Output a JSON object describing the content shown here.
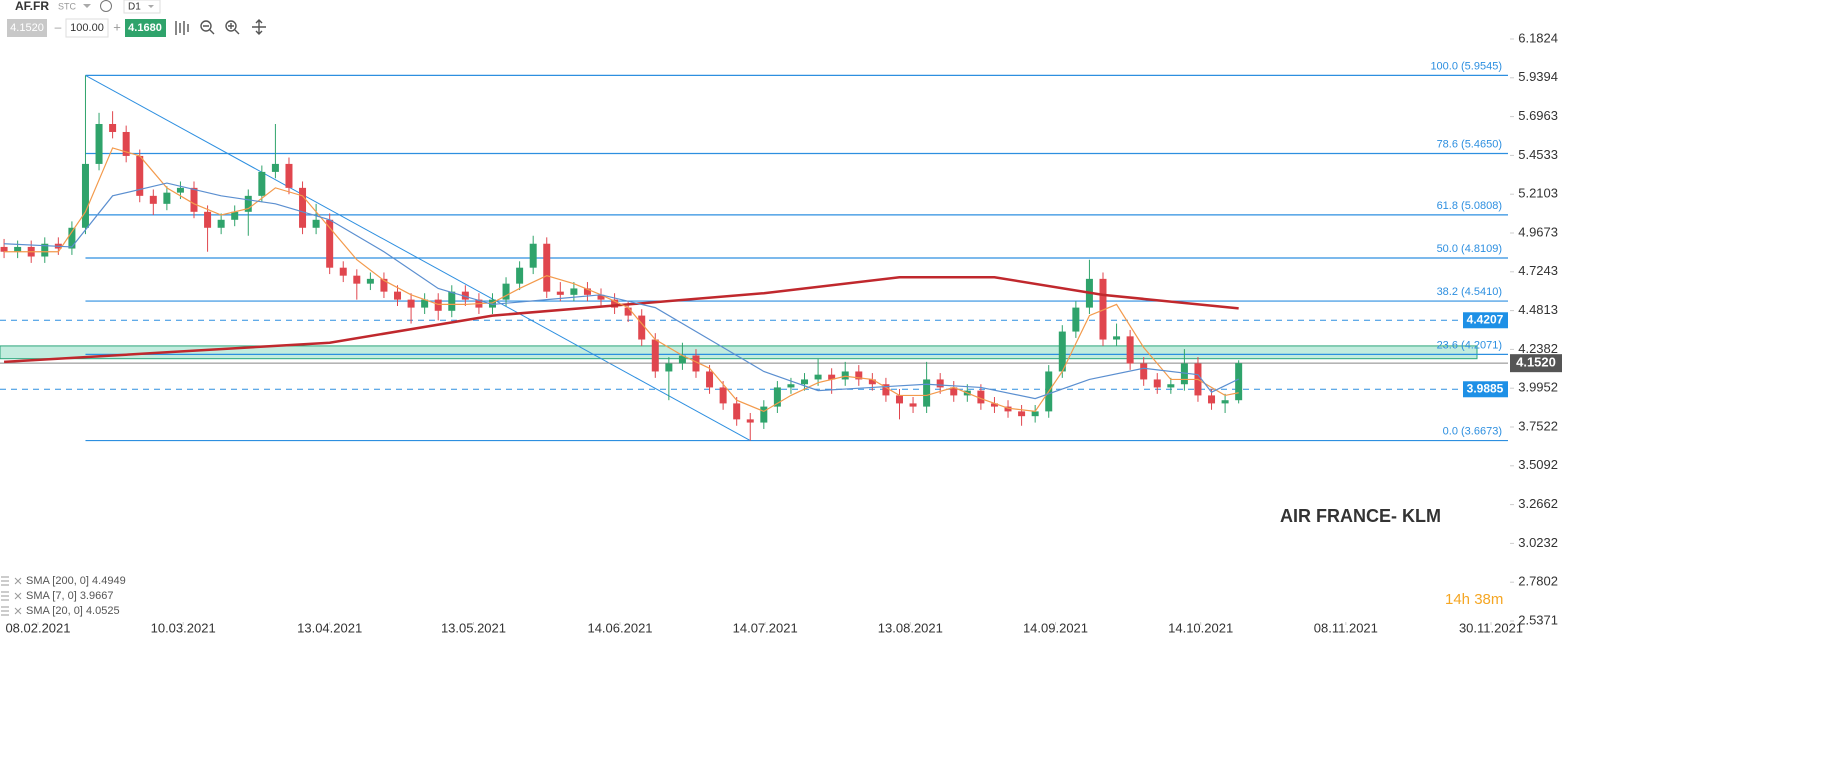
{
  "toolbar": {
    "symbol": "AF.FR",
    "market": "STC",
    "timeframe": "D1",
    "bid": "4.1520",
    "volume": "100.00",
    "ask": "4.1680"
  },
  "chart_data": {
    "type": "candlestick",
    "annotation": "AIR FRANCE- KLM",
    "timer": "14h 38m",
    "xlim": [
      -0.3,
      111
    ],
    "xticks": [
      {
        "value": 2.5,
        "label": "08.02.2021"
      },
      {
        "value": 13.2,
        "label": "10.03.2021"
      },
      {
        "value": 24,
        "label": "13.04.2021"
      },
      {
        "value": 34.6,
        "label": "13.05.2021"
      },
      {
        "value": 45.4,
        "label": "14.06.2021"
      },
      {
        "value": 56.1,
        "label": "14.07.2021"
      },
      {
        "value": 66.8,
        "label": "13.08.2021"
      },
      {
        "value": 77.5,
        "label": "14.09.2021"
      },
      {
        "value": 88.2,
        "label": "14.10.2021"
      },
      {
        "value": 98.9,
        "label": "08.11.2021"
      },
      {
        "value": 109.6,
        "label": "30.11.2021"
      }
    ],
    "ylim": [
      2.5371,
      6.364
    ],
    "yticks": [
      6.1824,
      5.9394,
      5.6963,
      5.4533,
      5.2103,
      4.9673,
      4.7243,
      4.4813,
      4.2382,
      3.9952,
      3.7522,
      3.5092,
      3.2662,
      3.0232,
      2.7802,
      2.5371
    ],
    "up_color": "#2fa36b",
    "down_color": "#e0464e",
    "x": [
      0,
      1,
      2,
      3,
      4,
      5,
      6,
      7,
      8,
      9,
      10,
      11,
      12,
      13,
      14,
      15,
      16,
      17,
      18,
      19,
      20,
      21,
      22,
      23,
      24,
      25,
      26,
      27,
      28,
      29,
      30,
      31,
      32,
      33,
      34,
      35,
      36,
      37,
      38,
      39,
      40,
      41,
      42,
      43,
      44,
      45,
      46,
      47,
      48,
      49,
      50,
      51,
      52,
      53,
      54,
      55,
      56,
      57,
      58,
      59,
      60,
      61,
      62,
      63,
      64,
      65,
      66,
      67,
      68,
      69,
      70,
      71,
      72,
      73,
      74,
      75,
      76,
      77,
      78,
      79,
      80,
      81,
      82,
      83,
      84,
      85,
      86,
      87,
      88,
      89,
      90,
      91
    ],
    "open": [
      4.88,
      4.85,
      4.88,
      4.82,
      4.9,
      4.87,
      5.0,
      5.4,
      5.65,
      5.6,
      5.45,
      5.2,
      5.15,
      5.22,
      5.25,
      5.1,
      5.0,
      5.05,
      5.1,
      5.2,
      5.35,
      5.4,
      5.25,
      5.0,
      5.05,
      4.75,
      4.7,
      4.65,
      4.68,
      4.6,
      4.55,
      4.5,
      4.55,
      4.48,
      4.6,
      4.55,
      4.5,
      4.55,
      4.65,
      4.75,
      4.9,
      4.6,
      4.58,
      4.62,
      4.58,
      4.55,
      4.5,
      4.45,
      4.3,
      4.1,
      4.15,
      4.2,
      4.1,
      4.0,
      3.9,
      3.8,
      3.78,
      3.88,
      4.0,
      4.02,
      4.05,
      4.08,
      4.05,
      4.1,
      4.05,
      4.02,
      3.95,
      3.9,
      3.88,
      4.05,
      4.0,
      3.95,
      3.98,
      3.9,
      3.88,
      3.85,
      3.82,
      3.85,
      4.1,
      4.35,
      4.5,
      4.68,
      4.3,
      4.32,
      4.15,
      4.05,
      4.0,
      4.02,
      4.15,
      3.95,
      3.9,
      3.92
    ],
    "high": [
      4.93,
      4.92,
      4.92,
      4.94,
      4.94,
      5.04,
      5.9545,
      5.72,
      5.73,
      5.64,
      5.49,
      5.24,
      5.26,
      5.29,
      5.29,
      5.14,
      5.09,
      5.14,
      5.24,
      5.39,
      5.65,
      5.44,
      5.29,
      5.15,
      5.09,
      4.79,
      4.74,
      4.72,
      4.72,
      4.64,
      4.59,
      4.59,
      4.59,
      4.64,
      4.64,
      4.59,
      4.59,
      4.69,
      4.79,
      4.95,
      4.94,
      4.66,
      4.66,
      4.66,
      4.62,
      4.59,
      4.54,
      4.49,
      4.34,
      4.19,
      4.28,
      4.24,
      4.14,
      4.04,
      3.94,
      3.84,
      3.92,
      4.04,
      4.06,
      4.09,
      4.18,
      4.12,
      4.16,
      4.14,
      4.09,
      4.06,
      3.99,
      3.94,
      4.16,
      4.09,
      4.04,
      4.02,
      4.02,
      3.94,
      3.92,
      3.89,
      3.89,
      4.14,
      4.39,
      4.54,
      4.8,
      4.72,
      4.4,
      4.36,
      4.19,
      4.09,
      4.06,
      4.24,
      4.19,
      3.99,
      3.96,
      4.17
    ],
    "low": [
      4.81,
      4.81,
      4.78,
      4.78,
      4.83,
      4.83,
      4.96,
      5.36,
      5.56,
      5.41,
      5.16,
      5.08,
      5.11,
      5.18,
      5.06,
      4.85,
      4.96,
      5.01,
      4.95,
      5.16,
      5.31,
      5.21,
      4.96,
      4.96,
      4.71,
      4.66,
      4.55,
      4.61,
      4.56,
      4.51,
      4.4,
      4.46,
      4.42,
      4.44,
      4.51,
      4.46,
      4.46,
      4.51,
      4.61,
      4.71,
      4.56,
      4.54,
      4.54,
      4.54,
      4.51,
      4.46,
      4.41,
      4.26,
      4.06,
      3.92,
      4.11,
      4.06,
      3.96,
      3.86,
      3.76,
      3.6673,
      3.74,
      3.84,
      3.96,
      3.98,
      4.01,
      3.96,
      4.01,
      4.01,
      3.98,
      3.91,
      3.8,
      3.84,
      3.84,
      3.96,
      3.91,
      3.91,
      3.86,
      3.84,
      3.81,
      3.76,
      3.78,
      3.81,
      4.06,
      4.31,
      4.46,
      4.26,
      4.26,
      4.11,
      4.01,
      3.96,
      3.96,
      3.98,
      3.91,
      3.86,
      3.84,
      3.9
    ],
    "close": [
      4.85,
      4.88,
      4.82,
      4.9,
      4.87,
      5.0,
      5.4,
      5.65,
      5.6,
      5.45,
      5.2,
      5.15,
      5.22,
      5.25,
      5.1,
      5.0,
      5.05,
      5.1,
      5.2,
      5.35,
      5.4,
      5.25,
      5.0,
      5.05,
      4.75,
      4.7,
      4.65,
      4.68,
      4.6,
      4.55,
      4.5,
      4.55,
      4.48,
      4.6,
      4.55,
      4.5,
      4.55,
      4.65,
      4.75,
      4.9,
      4.6,
      4.58,
      4.62,
      4.58,
      4.55,
      4.5,
      4.45,
      4.3,
      4.1,
      4.15,
      4.2,
      4.1,
      4.0,
      3.9,
      3.8,
      3.78,
      3.88,
      4.0,
      4.02,
      4.05,
      4.08,
      4.05,
      4.1,
      4.05,
      4.02,
      3.95,
      3.9,
      3.88,
      4.05,
      4.0,
      3.95,
      3.98,
      3.9,
      3.88,
      3.85,
      3.82,
      3.85,
      4.1,
      4.35,
      4.5,
      4.68,
      4.3,
      4.32,
      4.15,
      4.05,
      4.0,
      4.02,
      4.15,
      3.95,
      3.9,
      3.92,
      4.152
    ],
    "series": [
      {
        "name": "SMA [200, 0]",
        "legend_value": 4.4949,
        "color": "#c0282d",
        "width": 2.5,
        "x": [
          0,
          12,
          24,
          36,
          46,
          56,
          66,
          73,
          81,
          91
        ],
        "values": [
          4.16,
          4.22,
          4.28,
          4.45,
          4.52,
          4.59,
          4.69,
          4.69,
          4.58,
          4.4949
        ]
      },
      {
        "name": "SMA [7, 0]",
        "legend_value": 3.9667,
        "color": "#f39a4c",
        "width": 1.2,
        "x": [
          0,
          4,
          6,
          8,
          10,
          12,
          14,
          16,
          18,
          20,
          22,
          24,
          26,
          28,
          30,
          32,
          34,
          36,
          38,
          40,
          42,
          44,
          46,
          48,
          50,
          52,
          54,
          56,
          58,
          60,
          62,
          64,
          66,
          68,
          70,
          72,
          74,
          76,
          78,
          80,
          82,
          84,
          86,
          88,
          90,
          91
        ],
        "values": [
          4.85,
          4.85,
          5.1,
          5.5,
          5.45,
          5.25,
          5.15,
          5.08,
          5.12,
          5.25,
          5.2,
          5.0,
          4.8,
          4.67,
          4.58,
          4.52,
          4.52,
          4.53,
          4.62,
          4.7,
          4.65,
          4.58,
          4.5,
          4.3,
          4.2,
          4.12,
          3.92,
          3.85,
          3.95,
          4.03,
          4.07,
          4.05,
          3.95,
          3.95,
          4.0,
          3.93,
          3.87,
          3.85,
          4.1,
          4.45,
          4.52,
          4.25,
          4.05,
          4.05,
          3.95,
          3.9667
        ]
      },
      {
        "name": "SMA [20, 0]",
        "legend_value": 4.0525,
        "color": "#5b8fd0",
        "width": 1.2,
        "x": [
          0,
          5,
          8,
          12,
          16,
          20,
          24,
          28,
          32,
          36,
          40,
          44,
          48,
          52,
          56,
          60,
          64,
          68,
          72,
          76,
          80,
          84,
          88,
          89,
          91
        ],
        "values": [
          4.9,
          4.88,
          5.2,
          5.28,
          5.2,
          5.15,
          5.05,
          4.85,
          4.62,
          4.52,
          4.55,
          4.58,
          4.5,
          4.3,
          4.1,
          3.98,
          4.0,
          4.02,
          4.0,
          3.93,
          4.05,
          4.12,
          4.08,
          3.97,
          4.0525
        ]
      }
    ],
    "fib_start_x": 6,
    "fib_end_x": 55,
    "fib_color": "#2d8fe0",
    "fib_levels": [
      {
        "value": 5.9545,
        "label": "100.0 (5.9545)"
      },
      {
        "value": 5.465,
        "label": "78.6 (5.4650)"
      },
      {
        "value": 5.0808,
        "label": "61.8 (5.0808)"
      },
      {
        "value": 4.8109,
        "label": "50.0 (4.8109)"
      },
      {
        "value": 4.541,
        "label": "38.2 (4.5410)"
      },
      {
        "value": 4.2071,
        "label": "23.6 (4.2071)"
      },
      {
        "value": 3.6673,
        "label": "0.0 (3.6673)"
      }
    ],
    "zone": [
      4.18,
      4.26
    ],
    "levels": [
      {
        "value": 4.4207,
        "label": "4.4207"
      },
      {
        "value": 3.9885,
        "label": "3.9885"
      }
    ],
    "price": {
      "value": 4.152,
      "label": "4.1520"
    }
  }
}
